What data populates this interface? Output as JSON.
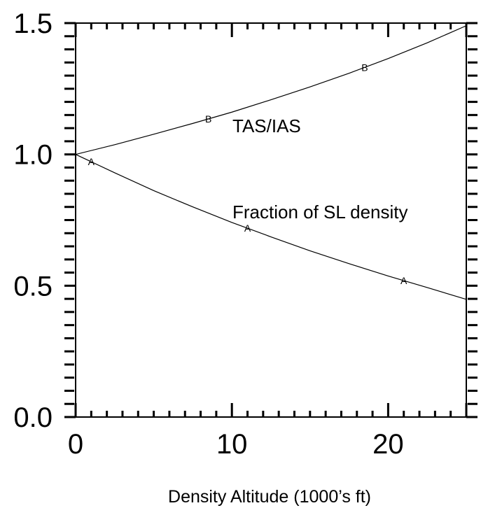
{
  "chart_data": {
    "type": "line",
    "xlabel": "Density Altitude (1000’s ft)",
    "ylabel": "",
    "xlim": [
      0,
      25
    ],
    "ylim": [
      0,
      1.5
    ],
    "x_ticks": [
      "0",
      "10",
      "20"
    ],
    "y_ticks": [
      "0.0",
      "0.5",
      "1.0",
      "1.5"
    ],
    "grid": false,
    "series": [
      {
        "name": "TAS/IAS",
        "marker": "B",
        "x": [
          0,
          2.5,
          5,
          7.5,
          10,
          12.5,
          15,
          17.5,
          20,
          22.5,
          25
        ],
        "y": [
          1.0,
          1.037,
          1.077,
          1.118,
          1.161,
          1.208,
          1.257,
          1.309,
          1.365,
          1.425,
          1.49
        ]
      },
      {
        "name": "Fraction of SL density",
        "marker": "A",
        "x": [
          0,
          2.5,
          5,
          7.5,
          10,
          12.5,
          15,
          17.5,
          20,
          22.5,
          25
        ],
        "y": [
          1.0,
          0.93,
          0.862,
          0.8,
          0.741,
          0.686,
          0.633,
          0.584,
          0.537,
          0.493,
          0.448
        ]
      }
    ]
  }
}
